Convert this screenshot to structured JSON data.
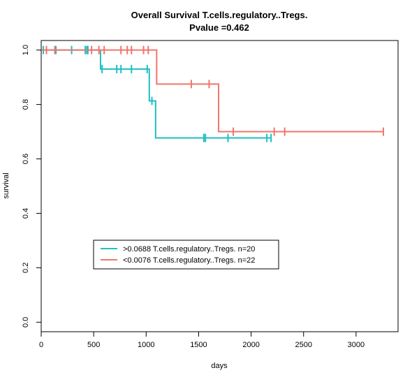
{
  "chart_data": {
    "type": "line",
    "subtype": "kaplan-meier-step",
    "title": "Overall Survival T.cells.regulatory..Tregs.",
    "subtitle": "Pvalue =0.462",
    "xlabel": "days",
    "ylabel": "survival",
    "xlim": [
      0,
      3400
    ],
    "ylim": [
      -0.035,
      1.035
    ],
    "x_ticks": [
      0,
      500,
      1000,
      1500,
      2000,
      2500,
      3000
    ],
    "x_tick_labels": [
      "0",
      "500",
      "1000",
      "1500",
      "2000",
      "2500",
      "3000"
    ],
    "y_ticks": [
      0.0,
      0.2,
      0.4,
      0.6,
      0.8,
      1.0
    ],
    "y_tick_labels": [
      "0.0",
      "0.2",
      "0.4",
      "0.6",
      "0.8",
      "1.0"
    ],
    "grid": false,
    "legend_position": "lower-left",
    "series": [
      {
        "name": ">0.0688 T.cells.regulatory..Tregs. n=20",
        "color": "#1fbfc3",
        "steps": [
          [
            0,
            1.0
          ],
          [
            565,
            0.93
          ],
          [
            1030,
            0.813
          ],
          [
            1090,
            0.677
          ],
          [
            2190,
            0.677
          ]
        ],
        "censor_x": [
          20,
          140,
          290,
          420,
          435,
          445,
          580,
          720,
          760,
          860,
          1010,
          1055,
          1550,
          1565,
          1780,
          2150,
          2190
        ]
      },
      {
        "name": "<0.0076 T.cells.regulatory..Tregs. n=22",
        "color": "#f1756c",
        "steps": [
          [
            0,
            1.0
          ],
          [
            1100,
            0.875
          ],
          [
            1690,
            0.7
          ],
          [
            3260,
            0.7
          ]
        ],
        "censor_x": [
          50,
          130,
          480,
          550,
          600,
          760,
          820,
          860,
          975,
          1020,
          1430,
          1600,
          1830,
          2220,
          2320,
          3260
        ]
      }
    ]
  }
}
